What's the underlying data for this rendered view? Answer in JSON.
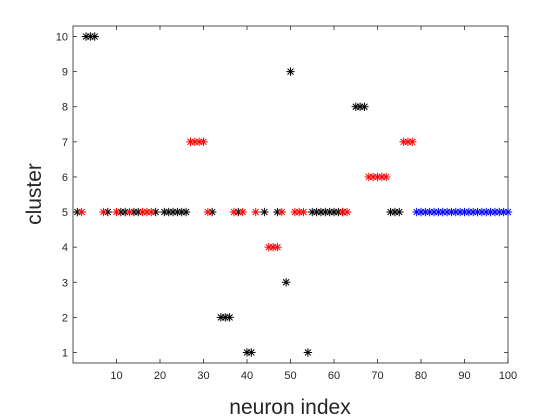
{
  "chart_data": {
    "type": "scatter",
    "title": "",
    "xlabel": "neuron index",
    "ylabel": "cluster",
    "xlim": [
      0,
      100
    ],
    "ylim": [
      0.7,
      10.3
    ],
    "xticks": [
      10,
      20,
      30,
      40,
      50,
      60,
      70,
      80,
      90,
      100
    ],
    "yticks": [
      1,
      2,
      3,
      4,
      5,
      6,
      7,
      8,
      9,
      10
    ],
    "grid": false,
    "legend": "none",
    "marker": "asterisk",
    "series": [
      {
        "color": "#000000",
        "points": [
          [
            1,
            5
          ],
          [
            3,
            10
          ],
          [
            4,
            10
          ],
          [
            5,
            10
          ],
          [
            8,
            5
          ],
          [
            11,
            5
          ],
          [
            12,
            5
          ],
          [
            14,
            5
          ],
          [
            15,
            5
          ],
          [
            19,
            5
          ],
          [
            21,
            5
          ],
          [
            22,
            5
          ],
          [
            23,
            5
          ],
          [
            24,
            5
          ],
          [
            25,
            5
          ],
          [
            26,
            5
          ],
          [
            32,
            5
          ],
          [
            34,
            2
          ],
          [
            35,
            2
          ],
          [
            36,
            2
          ],
          [
            38,
            5
          ],
          [
            40,
            1
          ],
          [
            41,
            1
          ],
          [
            44,
            5
          ],
          [
            47,
            5
          ],
          [
            49,
            3
          ],
          [
            50,
            9
          ],
          [
            54,
            1
          ],
          [
            55,
            5
          ],
          [
            56,
            5
          ],
          [
            57,
            5
          ],
          [
            58,
            5
          ],
          [
            59,
            5
          ],
          [
            60,
            5
          ],
          [
            61,
            5
          ],
          [
            62,
            5
          ],
          [
            65,
            8
          ],
          [
            66,
            8
          ],
          [
            67,
            8
          ],
          [
            73,
            5
          ],
          [
            74,
            5
          ],
          [
            75,
            5
          ]
        ]
      },
      {
        "color": "#ff0000",
        "points": [
          [
            2,
            5
          ],
          [
            7,
            5
          ],
          [
            10,
            5
          ],
          [
            13,
            5
          ],
          [
            16,
            5
          ],
          [
            17,
            5
          ],
          [
            18,
            5
          ],
          [
            27,
            7
          ],
          [
            28,
            7
          ],
          [
            29,
            7
          ],
          [
            30,
            7
          ],
          [
            31,
            5
          ],
          [
            37,
            5
          ],
          [
            39,
            5
          ],
          [
            42,
            5
          ],
          [
            45,
            4
          ],
          [
            46,
            4
          ],
          [
            47,
            4
          ],
          [
            48,
            5
          ],
          [
            51,
            5
          ],
          [
            52,
            5
          ],
          [
            53,
            5
          ],
          [
            62,
            5
          ],
          [
            63,
            5
          ],
          [
            68,
            6
          ],
          [
            69,
            6
          ],
          [
            70,
            6
          ],
          [
            71,
            6
          ],
          [
            72,
            6
          ],
          [
            76,
            7
          ],
          [
            77,
            7
          ],
          [
            78,
            7
          ]
        ]
      },
      {
        "color": "#0000ff",
        "points": [
          [
            79,
            5
          ],
          [
            80,
            5
          ],
          [
            81,
            5
          ],
          [
            82,
            5
          ],
          [
            83,
            5
          ],
          [
            84,
            5
          ],
          [
            85,
            5
          ],
          [
            86,
            5
          ],
          [
            87,
            5
          ],
          [
            88,
            5
          ],
          [
            89,
            5
          ],
          [
            90,
            5
          ],
          [
            91,
            5
          ],
          [
            92,
            5
          ],
          [
            93,
            5
          ],
          [
            94,
            5
          ],
          [
            95,
            5
          ],
          [
            96,
            5
          ],
          [
            97,
            5
          ],
          [
            98,
            5
          ],
          [
            99,
            5
          ],
          [
            100,
            5
          ]
        ]
      }
    ]
  }
}
